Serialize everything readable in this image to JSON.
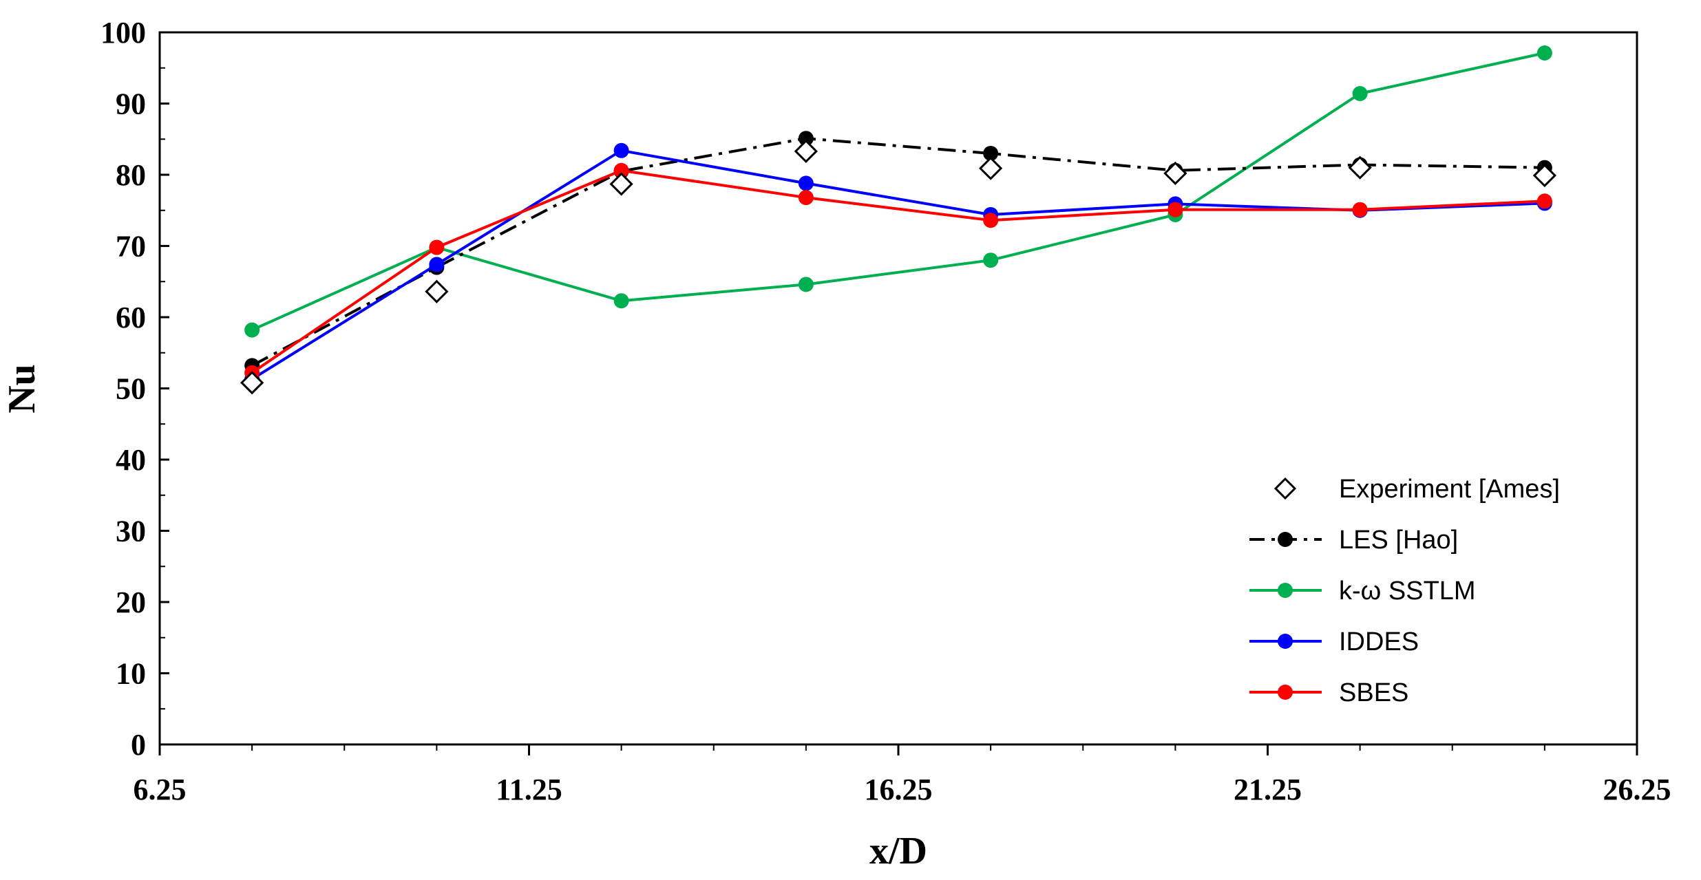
{
  "chart_data": {
    "type": "line",
    "xlabel": "x/D",
    "ylabel": "Nu",
    "xlim": [
      6.25,
      26.25
    ],
    "ylim": [
      0,
      100
    ],
    "x_ticks": [
      "6.25",
      "11.25",
      "16.25",
      "21.25",
      "26.25"
    ],
    "y_ticks": [
      "0",
      "10",
      "20",
      "30",
      "40",
      "50",
      "60",
      "70",
      "80",
      "90",
      "100"
    ],
    "grid": false,
    "legend_position": "lower-right",
    "series": [
      {
        "name": "Experiment [Ames]",
        "color": "#000000",
        "style": "markers",
        "marker": "diamond-open",
        "x": [
          7.5,
          10.0,
          12.5,
          15.0,
          17.5,
          20.0,
          22.5,
          25.0
        ],
        "y": [
          50.8,
          63.6,
          78.7,
          83.3,
          80.9,
          80.2,
          81.0,
          79.9
        ]
      },
      {
        "name": "LES [Hao]",
        "color": "#000000",
        "style": "dashdot",
        "marker": "circle",
        "x": [
          7.5,
          10.0,
          12.5,
          15.0,
          17.5,
          20.0,
          22.5,
          25.0
        ],
        "y": [
          53.2,
          67.0,
          80.5,
          85.1,
          83.0,
          80.6,
          81.4,
          81.0
        ]
      },
      {
        "name": "k-ω SSTLM",
        "color": "#00b050",
        "style": "solid",
        "marker": "circle",
        "x": [
          7.5,
          10.0,
          12.5,
          15.0,
          17.5,
          20.0,
          22.5,
          25.0
        ],
        "y": [
          58.2,
          69.8,
          62.3,
          64.6,
          68.0,
          74.4,
          91.4,
          97.1
        ]
      },
      {
        "name": "IDDES",
        "color": "#0000ff",
        "style": "solid",
        "marker": "circle",
        "x": [
          7.5,
          10.0,
          12.5,
          15.0,
          17.5,
          20.0,
          22.5,
          25.0
        ],
        "y": [
          51.3,
          67.4,
          83.4,
          78.8,
          74.4,
          75.9,
          75.0,
          76.0
        ]
      },
      {
        "name": "SBES",
        "color": "#ff0000",
        "style": "solid",
        "marker": "circle",
        "x": [
          7.5,
          10.0,
          12.5,
          15.0,
          17.5,
          20.0,
          22.5,
          25.0
        ],
        "y": [
          52.2,
          69.8,
          80.6,
          76.8,
          73.6,
          75.1,
          75.1,
          76.3
        ]
      }
    ]
  }
}
